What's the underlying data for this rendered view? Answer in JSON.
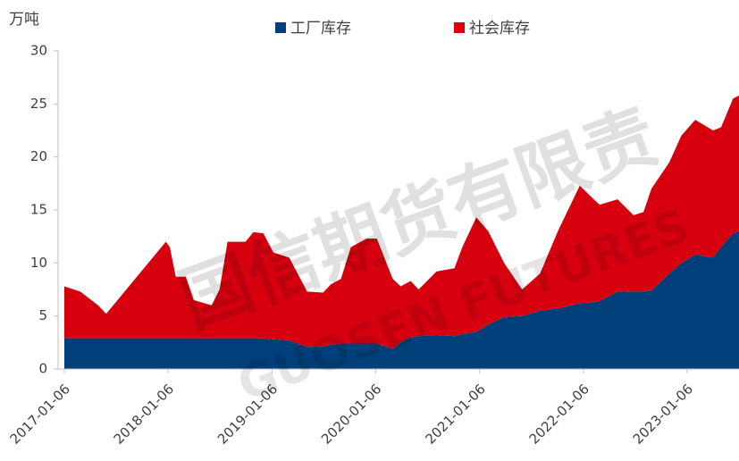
{
  "chart_data": {
    "type": "stacked_area",
    "y_label": "万吨",
    "watermark": [
      "国信期货有限责",
      "GUOSEN FUTURES"
    ],
    "x": [
      "2017-01-06",
      "2017-03-03",
      "2017-05-05",
      "2017-06-02",
      "2017-12-29",
      "2018-01-12",
      "2018-02-02",
      "2018-03-09",
      "2018-04-06",
      "2018-06-08",
      "2018-07-06",
      "2018-08-03",
      "2018-10-05",
      "2018-11-02",
      "2018-12-07",
      "2019-01-11",
      "2019-03-08",
      "2019-05-10",
      "2019-07-05",
      "2019-08-02",
      "2019-09-06",
      "2019-10-11",
      "2019-12-06",
      "2020-01-10",
      "2020-03-06",
      "2020-04-03",
      "2020-05-08",
      "2020-06-05",
      "2020-08-07",
      "2020-10-09",
      "2020-11-06",
      "2020-12-25",
      "2021-02-05",
      "2021-04-02",
      "2021-06-04",
      "2021-08-06",
      "2021-10-08",
      "2021-12-24",
      "2022-02-11",
      "2022-03-04",
      "2022-05-06",
      "2022-07-01",
      "2022-08-05",
      "2022-09-02",
      "2022-11-04",
      "2022-12-16",
      "2023-02-03",
      "2023-04-07",
      "2023-05-05",
      "2023-06-16",
      "2023-07-07"
    ],
    "series": [
      {
        "name": "工厂库存",
        "color": "#003f7a",
        "values": [
          2.9,
          2.9,
          2.9,
          2.9,
          2.9,
          2.9,
          2.9,
          2.9,
          2.9,
          2.9,
          2.9,
          2.9,
          2.9,
          2.9,
          2.9,
          2.8,
          2.7,
          2.1,
          2.1,
          2.3,
          2.4,
          2.4,
          2.4,
          2.4,
          1.9,
          2.5,
          3.0,
          3.1,
          3.2,
          3.1,
          3.3,
          3.5,
          4.2,
          4.9,
          5.0,
          5.5,
          5.7,
          6.2,
          6.3,
          6.4,
          7.3,
          7.3,
          7.3,
          7.4,
          9.0,
          10.0,
          10.8,
          10.5,
          11.5,
          12.8,
          13.0
        ]
      },
      {
        "name": "社会库存",
        "color": "#d7000f",
        "values": [
          4.9,
          4.4,
          3.1,
          2.3,
          9.1,
          8.6,
          5.8,
          5.8,
          3.6,
          3.1,
          4.6,
          9.1,
          9.1,
          10.0,
          9.9,
          8.2,
          7.8,
          5.2,
          5.1,
          5.7,
          6.1,
          9.1,
          9.9,
          9.9,
          6.6,
          5.3,
          5.3,
          4.4,
          6.0,
          6.4,
          8.2,
          10.8,
          8.8,
          5.1,
          2.5,
          3.5,
          7.3,
          11.1,
          9.7,
          9.1,
          8.7,
          7.2,
          7.5,
          9.6,
          10.5,
          12.0,
          12.7,
          12.0,
          11.3,
          12.7,
          12.8
        ]
      }
    ],
    "xlim": [
      "2017-01-06",
      "2023-07-07"
    ],
    "xticks": [
      "2017-01-06",
      "2018-01-06",
      "2019-01-06",
      "2020-01-06",
      "2021-01-06",
      "2022-01-06",
      "2023-01-06"
    ],
    "ylim": [
      0,
      30
    ],
    "yticks": [
      0,
      5,
      10,
      15,
      20,
      25,
      30
    ],
    "legend": "top"
  }
}
